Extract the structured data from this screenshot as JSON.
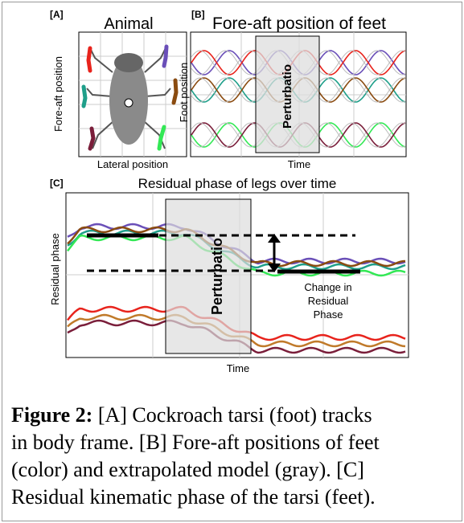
{
  "panel_a": {
    "tag": "[A]",
    "title": "Animal",
    "y_label": "Fore-aft position",
    "x_label": "Lateral position"
  },
  "panel_b": {
    "tag": "[B]",
    "title": "Fore-aft position of feet",
    "y_label": "Foot position",
    "x_label": "Time",
    "box_label": "Perturbatio"
  },
  "panel_c": {
    "tag": "[C]",
    "title": "Residual phase of legs over time",
    "y_label": "Residual phase",
    "x_label": "Time",
    "box_label": "Perturbatio",
    "annotation": [
      "Change in",
      "Residual",
      "Phase"
    ]
  },
  "caption": {
    "label": "Figure 2:",
    "lines": [
      " [A] Cockroach tarsi (foot) tracks",
      "in body frame. [B] Fore-aft positions of feet",
      "(color) and extrapolated model (gray). [C]",
      "Residual kinematic phase of the tarsi (feet)."
    ]
  }
}
